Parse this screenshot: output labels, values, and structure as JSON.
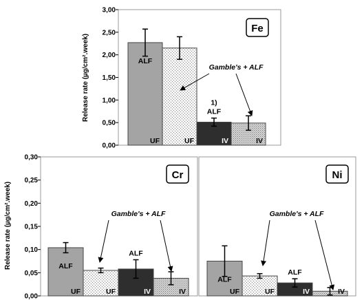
{
  "chart_data": [
    {
      "type": "bar",
      "title": "Fe",
      "ylabel": "Release rate (µg/cm².week)",
      "ylim": [
        0,
        3
      ],
      "yticks": [
        "0,00",
        "0,50",
        "1,00",
        "1,50",
        "2,00",
        "2,50",
        "3,00"
      ],
      "grid": false,
      "bars": [
        {
          "value": 2.27,
          "error": 0.3,
          "label": "ALF",
          "sub": "UF",
          "fill": "gray"
        },
        {
          "value": 2.15,
          "error": 0.25,
          "label": "",
          "sub": "UF",
          "fill": "dots"
        },
        {
          "value": 0.51,
          "error": 0.09,
          "label": "ALF",
          "prefix": "1)",
          "sub": "IV",
          "fill": "dark"
        },
        {
          "value": 0.49,
          "error": 0.16,
          "label": "",
          "sub": "IV",
          "fill": "check"
        }
      ],
      "annotation": "Gamble's + ALF"
    },
    {
      "type": "bar",
      "title": "Cr",
      "ylabel": "Release rate (µg/cm².week)",
      "ylim": [
        0,
        0.3
      ],
      "yticks": [
        "0,00",
        "0,05",
        "0,10",
        "0,15",
        "0,20",
        "0,25",
        "0,30"
      ],
      "grid": false,
      "bars": [
        {
          "value": 0.104,
          "error": 0.011,
          "label": "ALF",
          "sub": "UF",
          "fill": "gray"
        },
        {
          "value": 0.055,
          "error": 0.005,
          "label": "",
          "sub": "UF",
          "fill": "dots"
        },
        {
          "value": 0.058,
          "error": 0.02,
          "label": "ALF",
          "sub": "IV",
          "fill": "dark"
        },
        {
          "value": 0.038,
          "error": 0.014,
          "label": "",
          "sub": "IV",
          "fill": "check"
        }
      ],
      "annotation": "Gamble's + ALF"
    },
    {
      "type": "bar",
      "title": "Ni",
      "ylim": [
        0,
        0.3
      ],
      "grid": false,
      "bars": [
        {
          "value": 0.075,
          "error": 0.033,
          "label": "ALF",
          "sub": "UF",
          "fill": "gray"
        },
        {
          "value": 0.043,
          "error": 0.005,
          "label": "",
          "sub": "UF",
          "fill": "dots"
        },
        {
          "value": 0.028,
          "error": 0.009,
          "label": "ALF",
          "sub": "IV",
          "fill": "dark"
        },
        {
          "value": 0.01,
          "error": 0.008,
          "label": "",
          "sub": "IV",
          "fill": "check"
        }
      ],
      "annotation": "Gamble's + ALF"
    }
  ],
  "colors": {
    "gray": "#a4a4a4",
    "dark": "#2e2e2e",
    "dots_bg": "#f2f2f2",
    "check_bg": "#cfcfcf",
    "axis": "#000000"
  }
}
